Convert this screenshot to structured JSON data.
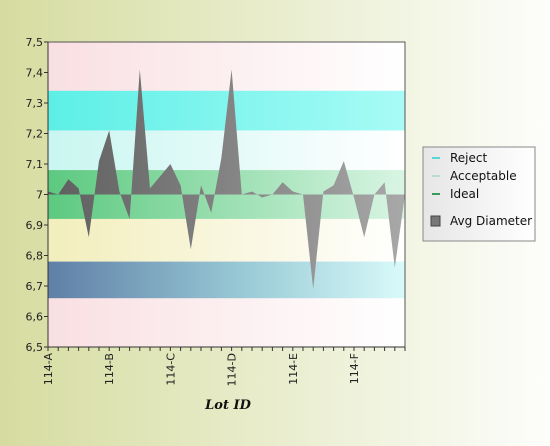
{
  "chart_data": {
    "type": "area",
    "title": "",
    "xlabel": "Lot ID",
    "ylabel": "",
    "ylim": [
      6.5,
      7.5
    ],
    "y_ticks": [
      "6,5",
      "6,6",
      "6,7",
      "6,8",
      "6,9",
      "7",
      "7,1",
      "7,2",
      "7,3",
      "7,4",
      "7,5"
    ],
    "x_tick_labels": [
      "114-A",
      "114-B",
      "114-C",
      "114-D",
      "114-E",
      "114-F"
    ],
    "baseline": 7.0,
    "series": [
      {
        "name": "Avg Diameter",
        "color": "#808080",
        "values": [
          7.01,
          7.0,
          7.05,
          7.02,
          6.86,
          7.11,
          7.21,
          7.01,
          6.92,
          7.41,
          7.02,
          7.06,
          7.1,
          7.03,
          6.82,
          7.03,
          6.94,
          7.12,
          7.41,
          7.0,
          7.01,
          6.99,
          7.0,
          7.04,
          7.01,
          7.0,
          6.69,
          7.01,
          7.03,
          7.11,
          6.99,
          6.86,
          7.0,
          7.04,
          6.76,
          7.0
        ]
      }
    ],
    "bands": [
      {
        "label": "Reject",
        "color": "#66f0ea",
        "ranges": [
          [
            7.21,
            7.34
          ],
          [
            6.66,
            6.78
          ]
        ]
      },
      {
        "label": "Acceptable",
        "color": "#d9f7ec",
        "ranges": [
          [
            7.08,
            7.21
          ],
          [
            6.92,
            6.95
          ]
        ]
      },
      {
        "label": "Ideal",
        "color": "#6dd68d",
        "ranges": [
          [
            6.92,
            7.08
          ]
        ]
      }
    ],
    "legend": {
      "position": "right",
      "entries": [
        {
          "label": "Reject",
          "color": "#5ad4d4",
          "marker": "line"
        },
        {
          "label": "Acceptable",
          "color": "#b8ddd0",
          "marker": "line"
        },
        {
          "label": "Ideal",
          "color": "#3a9a5a",
          "marker": "line"
        },
        {
          "label": "Avg Diameter",
          "color": "#777777",
          "marker": "box"
        }
      ]
    },
    "grid": false
  },
  "colors": {
    "background_left": "#d9dfa8",
    "background_right": "#fbfcf7"
  }
}
